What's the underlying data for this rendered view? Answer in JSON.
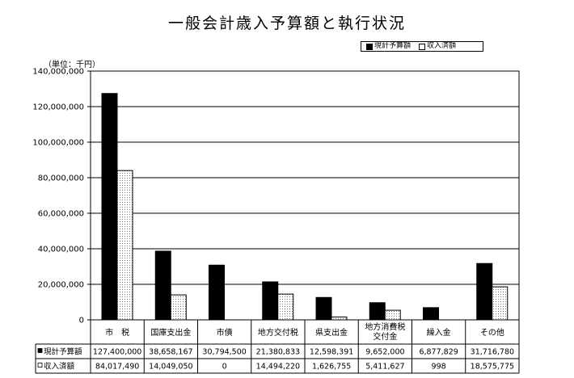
{
  "title": "一般会計歳入予算額と執行状況",
  "unit": "（単位：千円）",
  "legend": {
    "budget": "現計予算額",
    "revenue": "収入済額",
    "placement": "top-right"
  },
  "chart_data": {
    "type": "bar",
    "title": "一般会計歳入予算額と執行状況",
    "xlabel": "",
    "ylabel": "",
    "ylim": [
      0,
      140000000
    ],
    "ytick_step": 20000000,
    "yticks": [
      "0",
      "20,000,000",
      "40,000,000",
      "60,000,000",
      "80,000,000",
      "100,000,000",
      "120,000,000",
      "140,000,000"
    ],
    "grid": true,
    "categories": [
      [
        "市　税"
      ],
      [
        "国庫支出金"
      ],
      [
        "市債"
      ],
      [
        "地方交付税"
      ],
      [
        "県支出金"
      ],
      [
        "地方消費税",
        "交付金"
      ],
      [
        "繰入金"
      ],
      [
        "その他"
      ]
    ],
    "series": [
      {
        "name": "現計予算額",
        "color": "#000000",
        "values": [
          127400000,
          38658167,
          30794500,
          21380833,
          12598391,
          9652000,
          6877829,
          31716780
        ],
        "labels": [
          "127,400,000",
          "38,658,167",
          "30,794,500",
          "21,380,833",
          "12,598,391",
          "9,652,000",
          "6,877,829",
          "31,716,780"
        ]
      },
      {
        "name": "収入済額",
        "color": "#ffffff",
        "values": [
          84017490,
          14049050,
          0,
          14494220,
          1626755,
          5411627,
          998,
          18575775
        ],
        "labels": [
          "84,017,490",
          "14,049,050",
          "0",
          "14,494,220",
          "1,626,755",
          "5,411,627",
          "998",
          "18,575,775"
        ]
      }
    ]
  }
}
